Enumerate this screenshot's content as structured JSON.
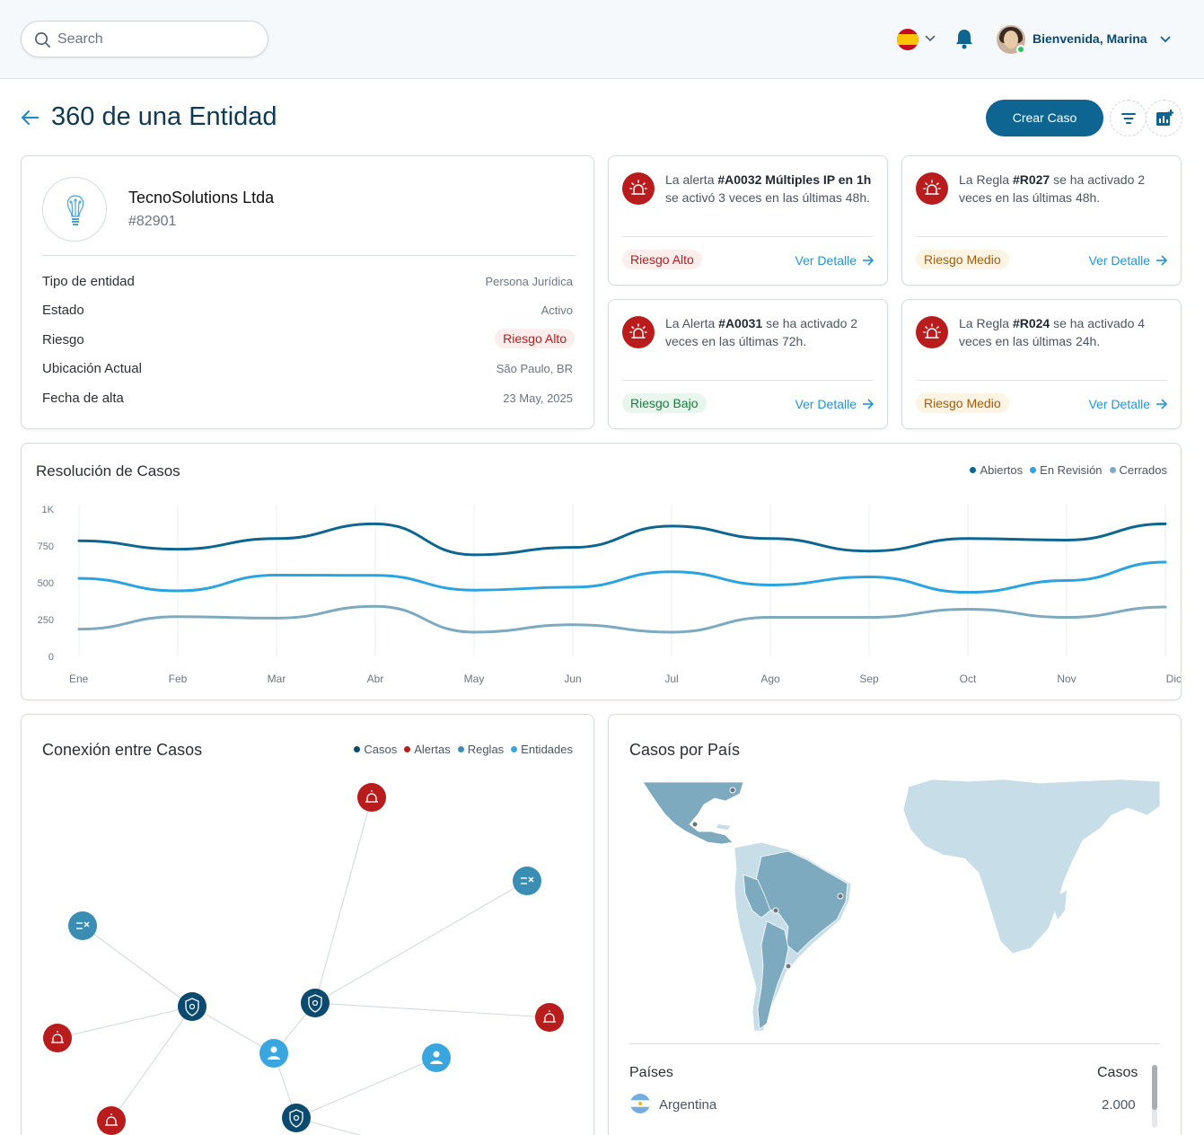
{
  "header": {
    "search_placeholder": "Search",
    "welcome": "Bienvenida, Marina",
    "language_flag": "spain-flag-icon"
  },
  "page": {
    "title": "360 de una Entidad",
    "create_button": "Crear Caso"
  },
  "entity": {
    "name": "TecnoSolutions Ltda",
    "id": "#82901",
    "rows": [
      {
        "label": "Tipo de entidad",
        "value": "Persona Jurídica"
      },
      {
        "label": "Estado",
        "value": "Activo"
      },
      {
        "label": "Riesgo",
        "value": "Riesgo Alto"
      },
      {
        "label": "Ubicación Actual",
        "value": "São Paulo, BR"
      },
      {
        "label": "Fecha de alta",
        "value": "23 May, 2025"
      }
    ]
  },
  "alerts": [
    {
      "pre": "La alerta ",
      "code": "#A0032 Múltiples IP en 1h",
      "post": " se activó 3 veces en las últimas 48h.",
      "risk": "Riesgo Alto",
      "link": "Ver Detalle"
    },
    {
      "pre": "La Regla ",
      "code": "#R027",
      "post": " se ha activado 2 veces en las últimas 48h.",
      "risk": "Riesgo Medio",
      "link": "Ver Detalle"
    },
    {
      "pre": "La Alerta ",
      "code": "#A0031",
      "post": " se ha activado 2 veces en las últimas 72h.",
      "risk": "Riesgo Bajo",
      "link": "Ver Detalle"
    },
    {
      "pre": "La Regla ",
      "code": "#R024",
      "post": " se ha activado 4 veces en las últimas 24h.",
      "risk": "Riesgo Medio",
      "link": "Ver Detalle"
    }
  ],
  "colors": {
    "accent": "#0e6591",
    "abiertos": "#0e6591",
    "revision": "#2ba3e0",
    "cerrados": "#7eaabf",
    "alert_red": "#b91c1c",
    "rule_blue": "#3a8db3",
    "entity_blue": "#3aa6e0",
    "case_navy": "#0b4a6f"
  },
  "chart_data": {
    "type": "line",
    "title": "Resolución de Casos",
    "categories": [
      "Ene",
      "Feb",
      "Mar",
      "Abr",
      "May",
      "Jun",
      "Jul",
      "Ago",
      "Sep",
      "Oct",
      "Nov",
      "Dic"
    ],
    "y_ticks": [
      "0",
      "250",
      "500",
      "750",
      "1K"
    ],
    "ylim": [
      0,
      1000
    ],
    "grid": "vertical",
    "legend_position": "top-right",
    "series": [
      {
        "name": "Abiertos",
        "values": [
          785,
          728,
          800,
          900,
          690,
          740,
          885,
          800,
          715,
          800,
          790,
          900
        ]
      },
      {
        "name": "En Revisión",
        "values": [
          530,
          445,
          552,
          550,
          450,
          470,
          575,
          485,
          540,
          435,
          515,
          640
        ]
      },
      {
        "name": "Cerrados",
        "values": [
          185,
          270,
          260,
          340,
          165,
          215,
          165,
          265,
          265,
          320,
          265,
          335
        ]
      }
    ]
  },
  "network": {
    "title": "Conexión entre Casos",
    "legend": [
      "Casos",
      "Alertas",
      "Reglas",
      "Entidades"
    ]
  },
  "map": {
    "title": "Casos por País",
    "table_header_country": "Países",
    "table_header_cases": "Casos",
    "rows": [
      {
        "country": "Argentina",
        "cases": "2.000"
      }
    ]
  }
}
